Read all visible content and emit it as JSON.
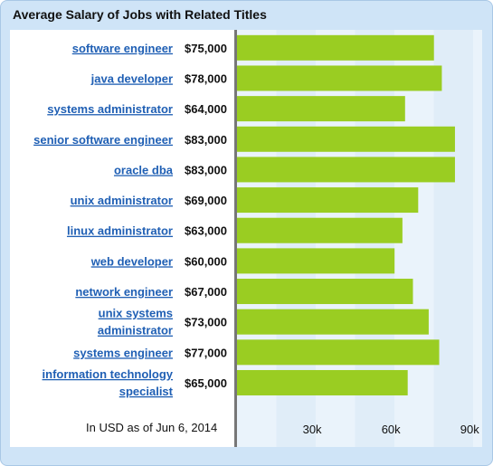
{
  "title": "Average Salary of Jobs with Related Titles",
  "footnote": "In USD as of Jun 6, 2014",
  "colors": {
    "bar": "#9acd22",
    "band_light": "#eaf3fb",
    "band_mid": "#e0edf8",
    "axis": "#777777",
    "link": "#1f5fb4"
  },
  "chart_data": {
    "type": "bar",
    "orientation": "horizontal",
    "categories": [
      "software engineer",
      "java developer",
      "systems administrator",
      "senior software engineer",
      "oracle dba",
      "unix administrator",
      "linux administrator",
      "web developer",
      "network engineer",
      "unix systems administrator",
      "systems engineer",
      "information technology specialist"
    ],
    "value_labels": [
      "$75,000",
      "$78,000",
      "$64,000",
      "$83,000",
      "$83,000",
      "$69,000",
      "$63,000",
      "$60,000",
      "$67,000",
      "$73,000",
      "$77,000",
      "$65,000"
    ],
    "values": [
      75000,
      78000,
      64000,
      83000,
      83000,
      69000,
      63000,
      60000,
      67000,
      73000,
      77000,
      65000
    ],
    "xticks": [
      {
        "value": 30000,
        "label": "30k"
      },
      {
        "value": 60000,
        "label": "60k"
      },
      {
        "value": 90000,
        "label": "90k"
      }
    ],
    "xlim": [
      0,
      90000
    ],
    "grid": false,
    "legend": "none"
  }
}
